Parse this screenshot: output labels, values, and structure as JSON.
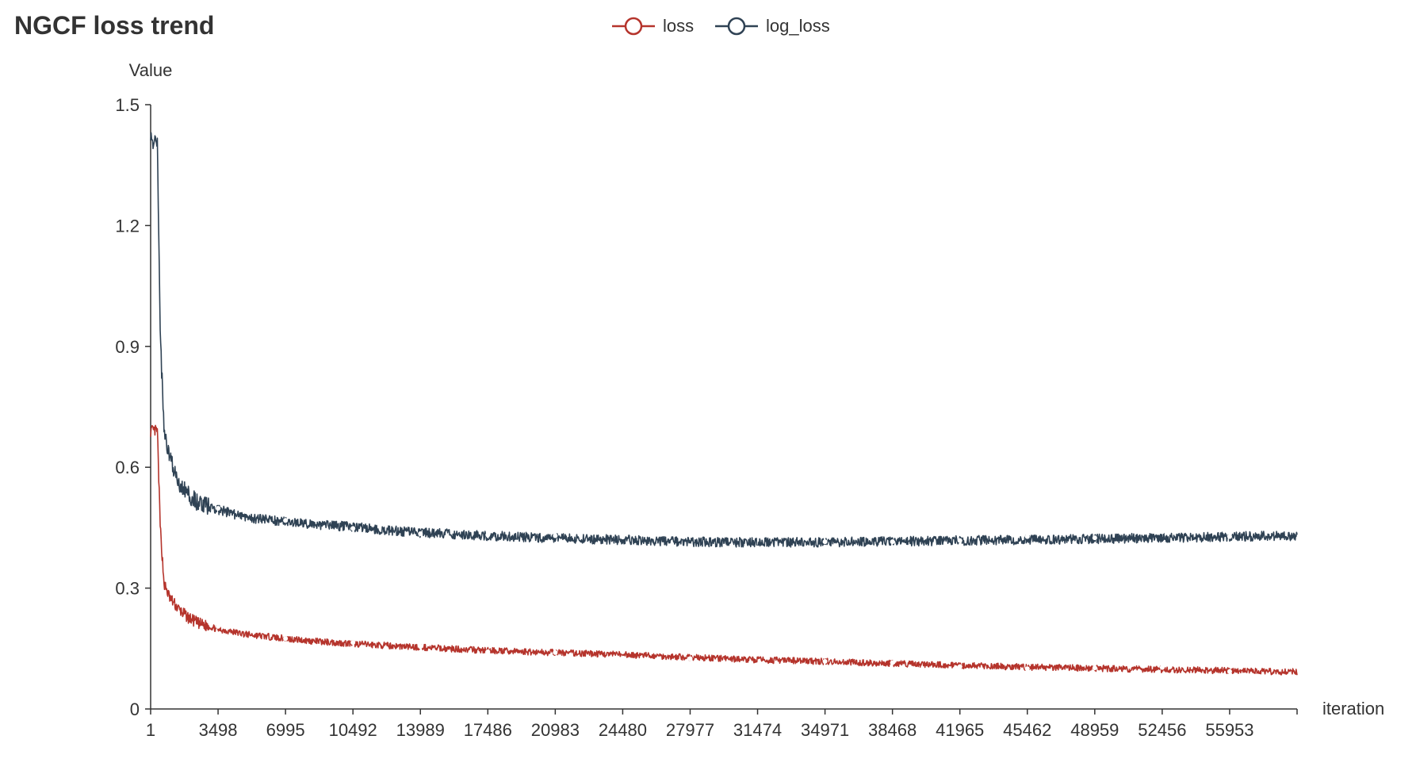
{
  "chart_data": {
    "type": "line",
    "title": "NGCF loss trend",
    "xlabel": "iteration",
    "ylabel": "Value",
    "x_range": [
      1,
      59450
    ],
    "xticks": [
      "1",
      "3498",
      "6995",
      "10492",
      "13989",
      "17486",
      "20983",
      "24480",
      "27977",
      "31474",
      "34971",
      "38468",
      "41965",
      "45462",
      "48959",
      "52456",
      "55953"
    ],
    "yticks": [
      "0",
      "0.3",
      "0.6",
      "0.9",
      "1.2",
      "1.5"
    ],
    "ylim": [
      0,
      1.5
    ],
    "legend_position": "top-center",
    "grid": false,
    "series": [
      {
        "name": "loss",
        "color": "#b5342c",
        "noise": 0.008,
        "x": [
          1,
          350,
          500,
          700,
          1000,
          1500,
          2000,
          2500,
          3498,
          5000,
          6995,
          8500,
          10492,
          12000,
          13989,
          17486,
          20983,
          24480,
          27977,
          31474,
          34971,
          38468,
          41965,
          45462,
          48959,
          52456,
          55953,
          59450
        ],
        "values": [
          0.69,
          0.69,
          0.45,
          0.31,
          0.275,
          0.245,
          0.225,
          0.212,
          0.198,
          0.185,
          0.175,
          0.168,
          0.162,
          0.158,
          0.153,
          0.145,
          0.14,
          0.135,
          0.128,
          0.122,
          0.118,
          0.113,
          0.108,
          0.104,
          0.101,
          0.098,
          0.095,
          0.092
        ]
      },
      {
        "name": "log_loss",
        "color": "#2f4254",
        "noise": 0.012,
        "x": [
          1,
          350,
          500,
          700,
          1000,
          1500,
          2000,
          2500,
          3498,
          5000,
          6995,
          8500,
          10492,
          12000,
          13989,
          17486,
          20983,
          24480,
          27977,
          31474,
          34971,
          38468,
          41965,
          45462,
          48959,
          52456,
          55953,
          59450
        ],
        "values": [
          1.41,
          1.4,
          0.92,
          0.7,
          0.62,
          0.56,
          0.53,
          0.51,
          0.495,
          0.475,
          0.465,
          0.458,
          0.452,
          0.444,
          0.438,
          0.43,
          0.424,
          0.42,
          0.415,
          0.413,
          0.414,
          0.416,
          0.418,
          0.42,
          0.422,
          0.425,
          0.428,
          0.43
        ]
      }
    ],
    "markers": {
      "x": [
        3498,
        6995,
        10492,
        13989,
        17486,
        20983,
        24480,
        27977,
        31474,
        34971,
        38468,
        41965,
        45462,
        48959,
        52456,
        55953
      ],
      "loss": [
        0.205,
        0.175,
        0.165,
        0.155,
        0.142,
        0.14,
        0.142,
        0.125,
        0.11,
        0.118,
        0.115,
        0.105,
        0.1,
        0.102,
        0.103,
        0.093
      ],
      "log_loss": [
        0.498,
        0.468,
        0.448,
        0.435,
        0.432,
        0.43,
        0.427,
        0.405,
        0.4,
        0.415,
        0.415,
        0.418,
        0.428,
        0.425,
        0.44,
        0.428
      ]
    }
  }
}
